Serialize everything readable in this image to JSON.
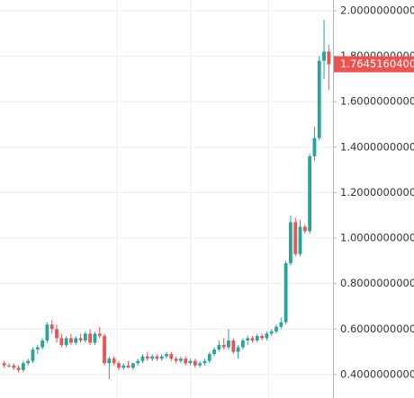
{
  "chart_data": {
    "type": "candlestick",
    "open": [
      0.45,
      0.44,
      0.44,
      0.43,
      0.42,
      0.45,
      0.46,
      0.51,
      0.52,
      0.55,
      0.62,
      0.6,
      0.56,
      0.53,
      0.56,
      0.54,
      0.56,
      0.55,
      0.58,
      0.54,
      0.58,
      0.57,
      0.45,
      0.47,
      0.45,
      0.43,
      0.44,
      0.43,
      0.45,
      0.46,
      0.48,
      0.47,
      0.48,
      0.47,
      0.48,
      0.49,
      0.47,
      0.46,
      0.47,
      0.45,
      0.46,
      0.44,
      0.45,
      0.46,
      0.49,
      0.51,
      0.53,
      0.52,
      0.55,
      0.5,
      0.52,
      0.55,
      0.56,
      0.55,
      0.57,
      0.56,
      0.58,
      0.59,
      0.61,
      0.63,
      0.89,
      1.07,
      0.93,
      1.05,
      1.03,
      1.36,
      1.44,
      1.78,
      1.82
    ],
    "high": [
      0.46,
      0.45,
      0.45,
      0.44,
      0.46,
      0.47,
      0.52,
      0.53,
      0.56,
      0.63,
      0.64,
      0.62,
      0.58,
      0.57,
      0.58,
      0.57,
      0.58,
      0.59,
      0.6,
      0.59,
      0.61,
      0.58,
      0.48,
      0.48,
      0.46,
      0.45,
      0.46,
      0.45,
      0.47,
      0.49,
      0.5,
      0.49,
      0.49,
      0.49,
      0.5,
      0.5,
      0.48,
      0.48,
      0.48,
      0.47,
      0.47,
      0.46,
      0.47,
      0.5,
      0.52,
      0.55,
      0.56,
      0.6,
      0.56,
      0.53,
      0.56,
      0.57,
      0.57,
      0.58,
      0.58,
      0.59,
      0.6,
      0.62,
      0.65,
      0.9,
      1.1,
      1.09,
      1.08,
      1.06,
      1.37,
      1.49,
      1.8,
      1.96,
      1.85
    ],
    "low": [
      0.43,
      0.43,
      0.42,
      0.41,
      0.41,
      0.44,
      0.45,
      0.49,
      0.51,
      0.54,
      0.58,
      0.54,
      0.52,
      0.52,
      0.53,
      0.53,
      0.54,
      0.54,
      0.53,
      0.53,
      0.56,
      0.44,
      0.38,
      0.44,
      0.42,
      0.42,
      0.43,
      0.42,
      0.44,
      0.45,
      0.46,
      0.46,
      0.46,
      0.46,
      0.47,
      0.46,
      0.45,
      0.45,
      0.44,
      0.44,
      0.43,
      0.43,
      0.44,
      0.45,
      0.48,
      0.5,
      0.51,
      0.51,
      0.49,
      0.47,
      0.51,
      0.53,
      0.54,
      0.54,
      0.55,
      0.55,
      0.57,
      0.58,
      0.6,
      0.62,
      0.88,
      0.92,
      0.92,
      1.02,
      1.02,
      1.34,
      1.43,
      1.7,
      1.65
    ],
    "close": [
      0.44,
      0.44,
      0.43,
      0.42,
      0.45,
      0.46,
      0.51,
      0.52,
      0.55,
      0.62,
      0.6,
      0.56,
      0.53,
      0.56,
      0.54,
      0.56,
      0.55,
      0.58,
      0.54,
      0.58,
      0.57,
      0.45,
      0.47,
      0.45,
      0.43,
      0.44,
      0.43,
      0.45,
      0.46,
      0.48,
      0.47,
      0.48,
      0.47,
      0.48,
      0.49,
      0.47,
      0.46,
      0.47,
      0.45,
      0.46,
      0.44,
      0.45,
      0.46,
      0.49,
      0.51,
      0.53,
      0.52,
      0.55,
      0.5,
      0.52,
      0.55,
      0.56,
      0.55,
      0.57,
      0.56,
      0.58,
      0.59,
      0.61,
      0.63,
      0.89,
      1.07,
      0.93,
      1.05,
      1.03,
      1.36,
      1.44,
      1.78,
      1.82,
      1.76451604
    ],
    "last_label": "1.7645160400",
    "up_color": "#26a69a",
    "down_color": "#ef5350",
    "ylim": [
      0.297,
      2.047
    ],
    "yticks": [
      {
        "value": 0.4,
        "label": "0.4000000000"
      },
      {
        "value": 0.6,
        "label": "0.6000000000"
      },
      {
        "value": 0.8,
        "label": "0.8000000000"
      },
      {
        "value": 1.0,
        "label": "1.0000000000"
      },
      {
        "value": 1.2,
        "label": "1.2000000000"
      },
      {
        "value": 1.4,
        "label": "1.4000000000"
      },
      {
        "value": 1.6,
        "label": "1.6000000000"
      },
      {
        "value": 1.8,
        "label": "1.8000000000"
      },
      {
        "value": 2.0,
        "label": "2.0000000000"
      }
    ],
    "grid": true
  }
}
